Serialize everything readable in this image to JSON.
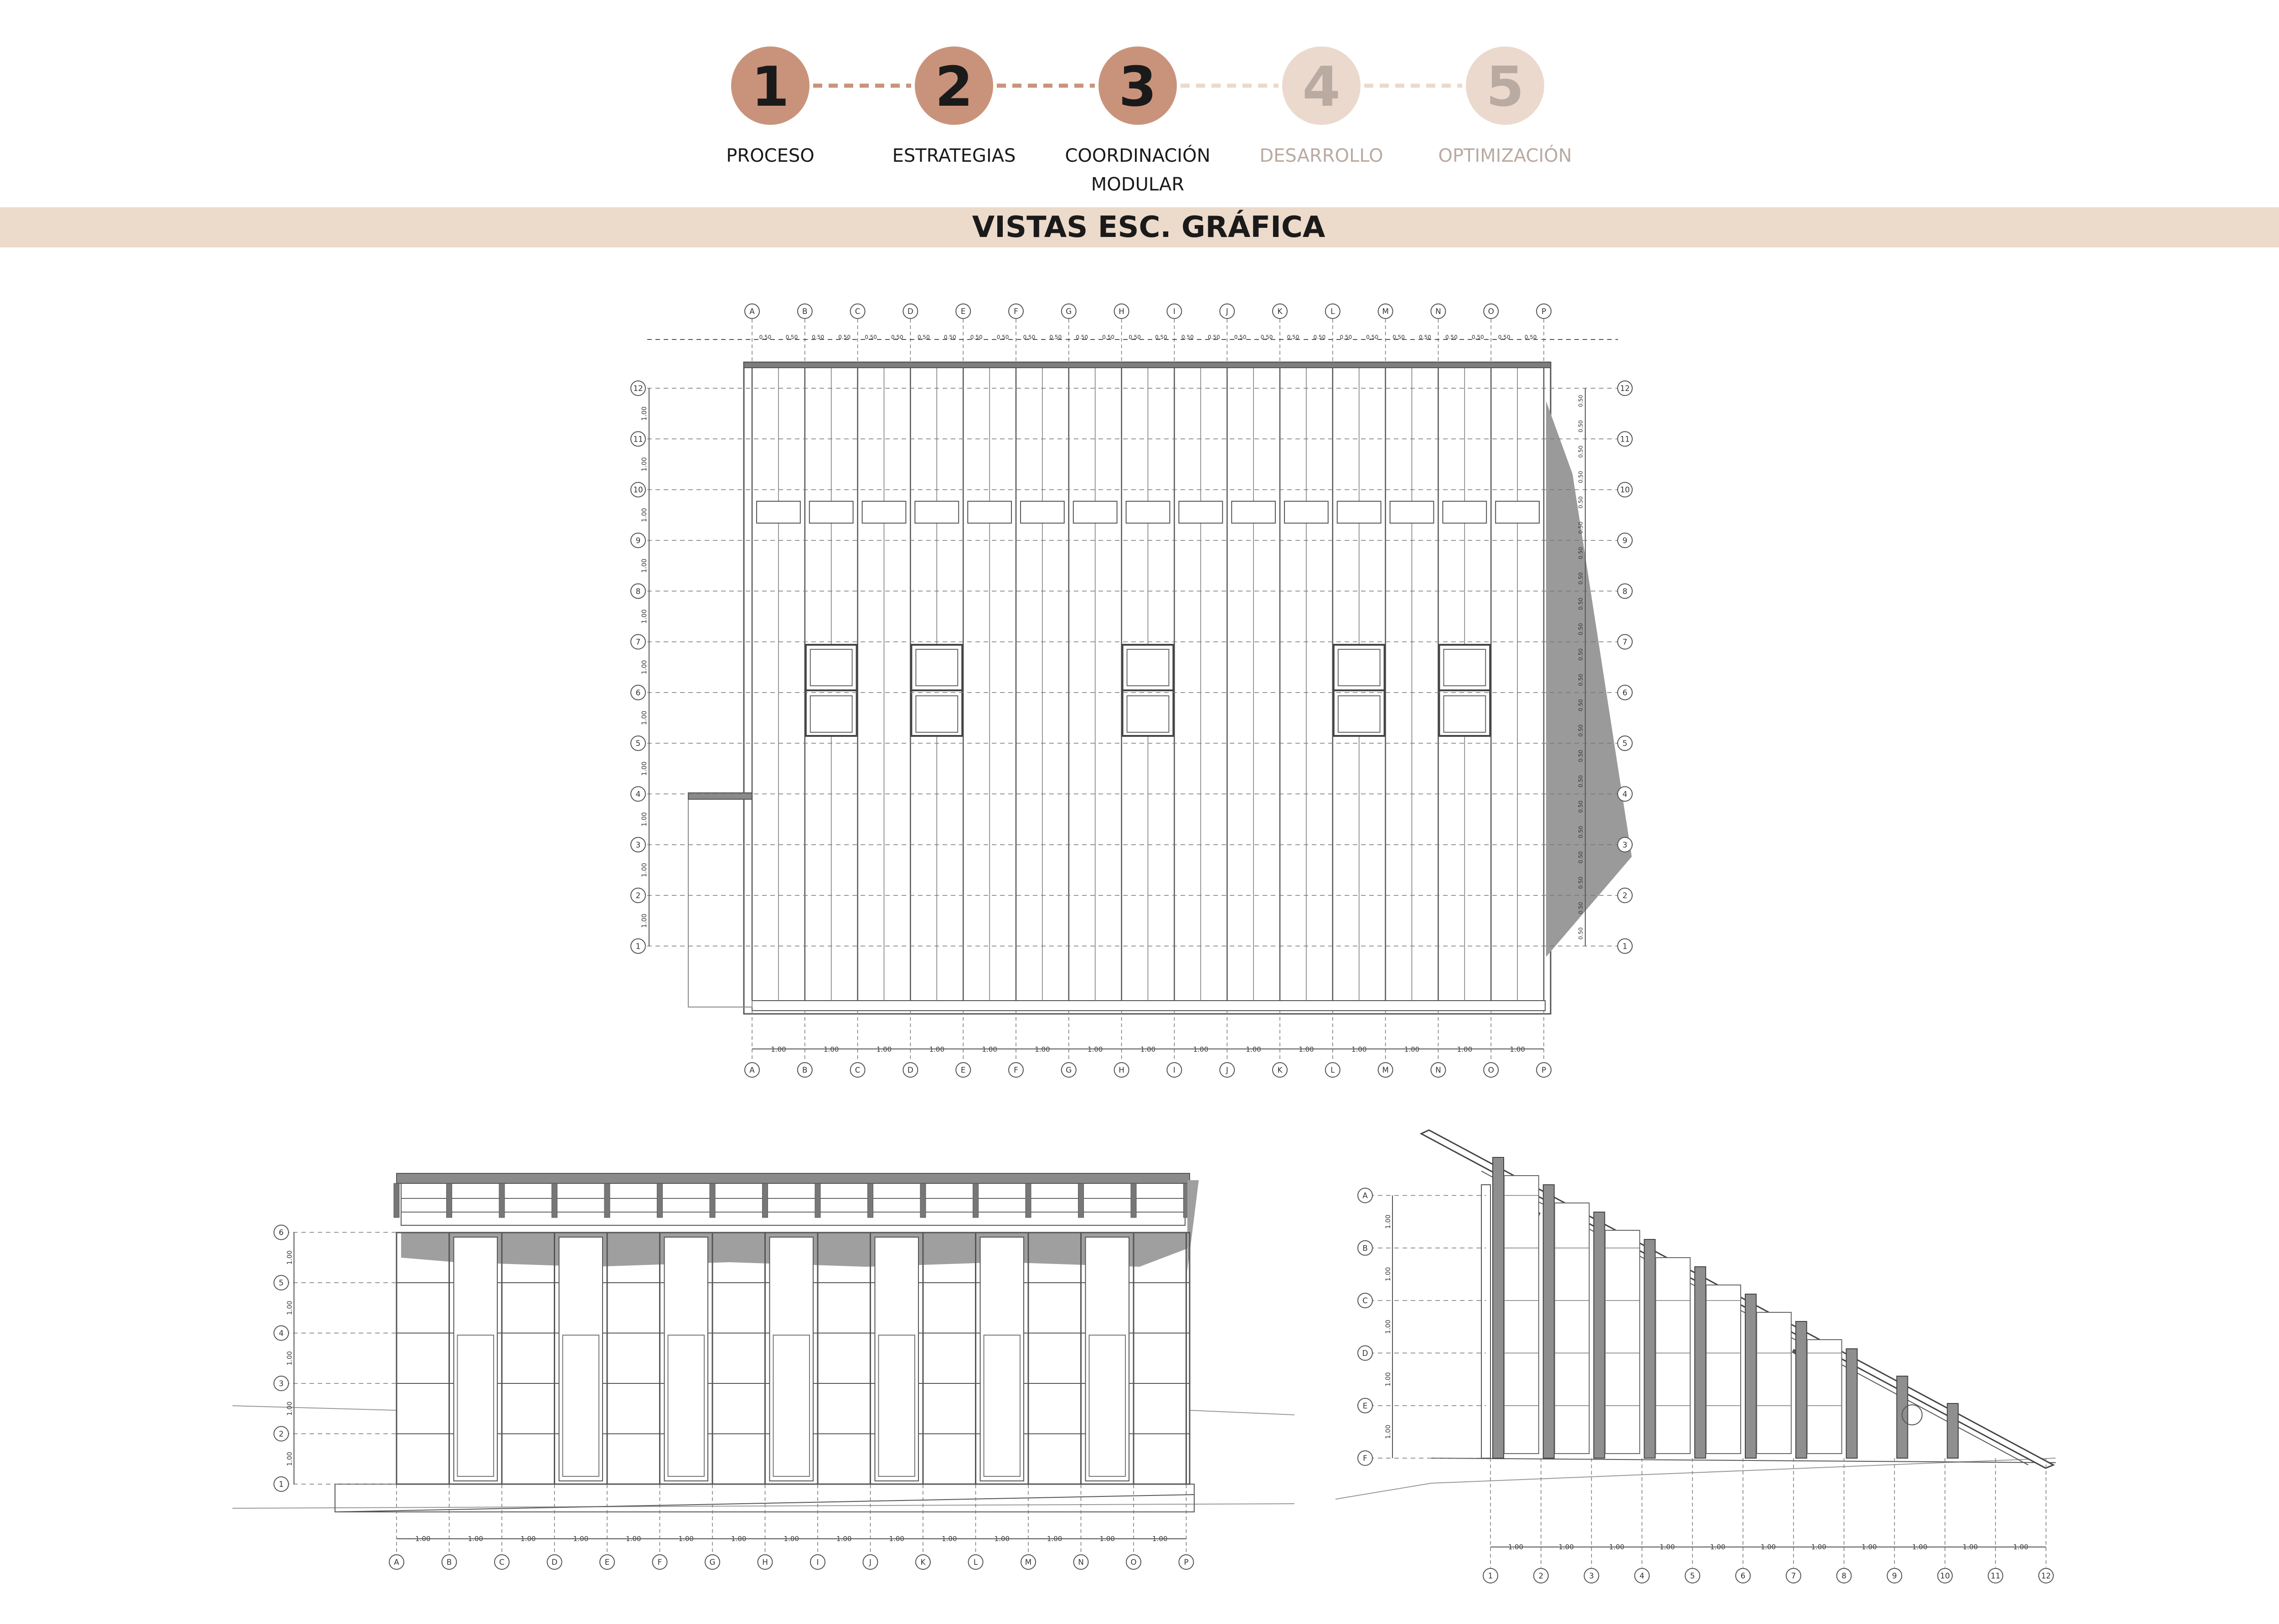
{
  "steps": [
    {
      "number": "1",
      "label": "PROCESO",
      "active": true
    },
    {
      "number": "2",
      "label": "ESTRATEGIAS",
      "active": true
    },
    {
      "number": "3",
      "label": "COORDINACIÓN",
      "label2": "MODULAR",
      "active": true
    },
    {
      "number": "4",
      "label": "DESARROLLO",
      "active": false
    },
    {
      "number": "5",
      "label": "OPTIMIZACIÓN",
      "active": false
    }
  ],
  "section_title": "VISTAS ESC. GRÁFICA",
  "colors": {
    "active_circle": "#c9937b",
    "inactive_circle": "#ecd9cd",
    "active_text": "#1a1a1a",
    "inactive_text": "#b9aaa2",
    "banner": "#ecdacb",
    "line": "#555555",
    "shadow": "#9a9a9a"
  },
  "views": {
    "top": {
      "grid_letters": [
        "A",
        "B",
        "C",
        "D",
        "E",
        "F",
        "G",
        "H",
        "I",
        "J",
        "K",
        "L",
        "M",
        "N",
        "O",
        "P"
      ],
      "grid_numbers": [
        "1",
        "2",
        "3",
        "4",
        "5",
        "6",
        "7",
        "8",
        "9",
        "10",
        "11",
        "12"
      ],
      "module_label": "1.00",
      "half_module_label": "0.50"
    },
    "front": {
      "grid_letters": [
        "A",
        "B",
        "C",
        "D",
        "E",
        "F",
        "G",
        "H",
        "I",
        "J",
        "K",
        "L",
        "M",
        "N",
        "O",
        "P"
      ],
      "grid_numbers": [
        "1",
        "2",
        "3",
        "4",
        "5",
        "6"
      ],
      "module_label": "1.00"
    },
    "side": {
      "grid_letters": [
        "A",
        "B",
        "C",
        "D",
        "E",
        "F"
      ],
      "grid_numbers": [
        "1",
        "2",
        "3",
        "4",
        "5",
        "6",
        "7",
        "8",
        "9",
        "10",
        "11",
        "12"
      ],
      "module_label": "1.00"
    }
  }
}
